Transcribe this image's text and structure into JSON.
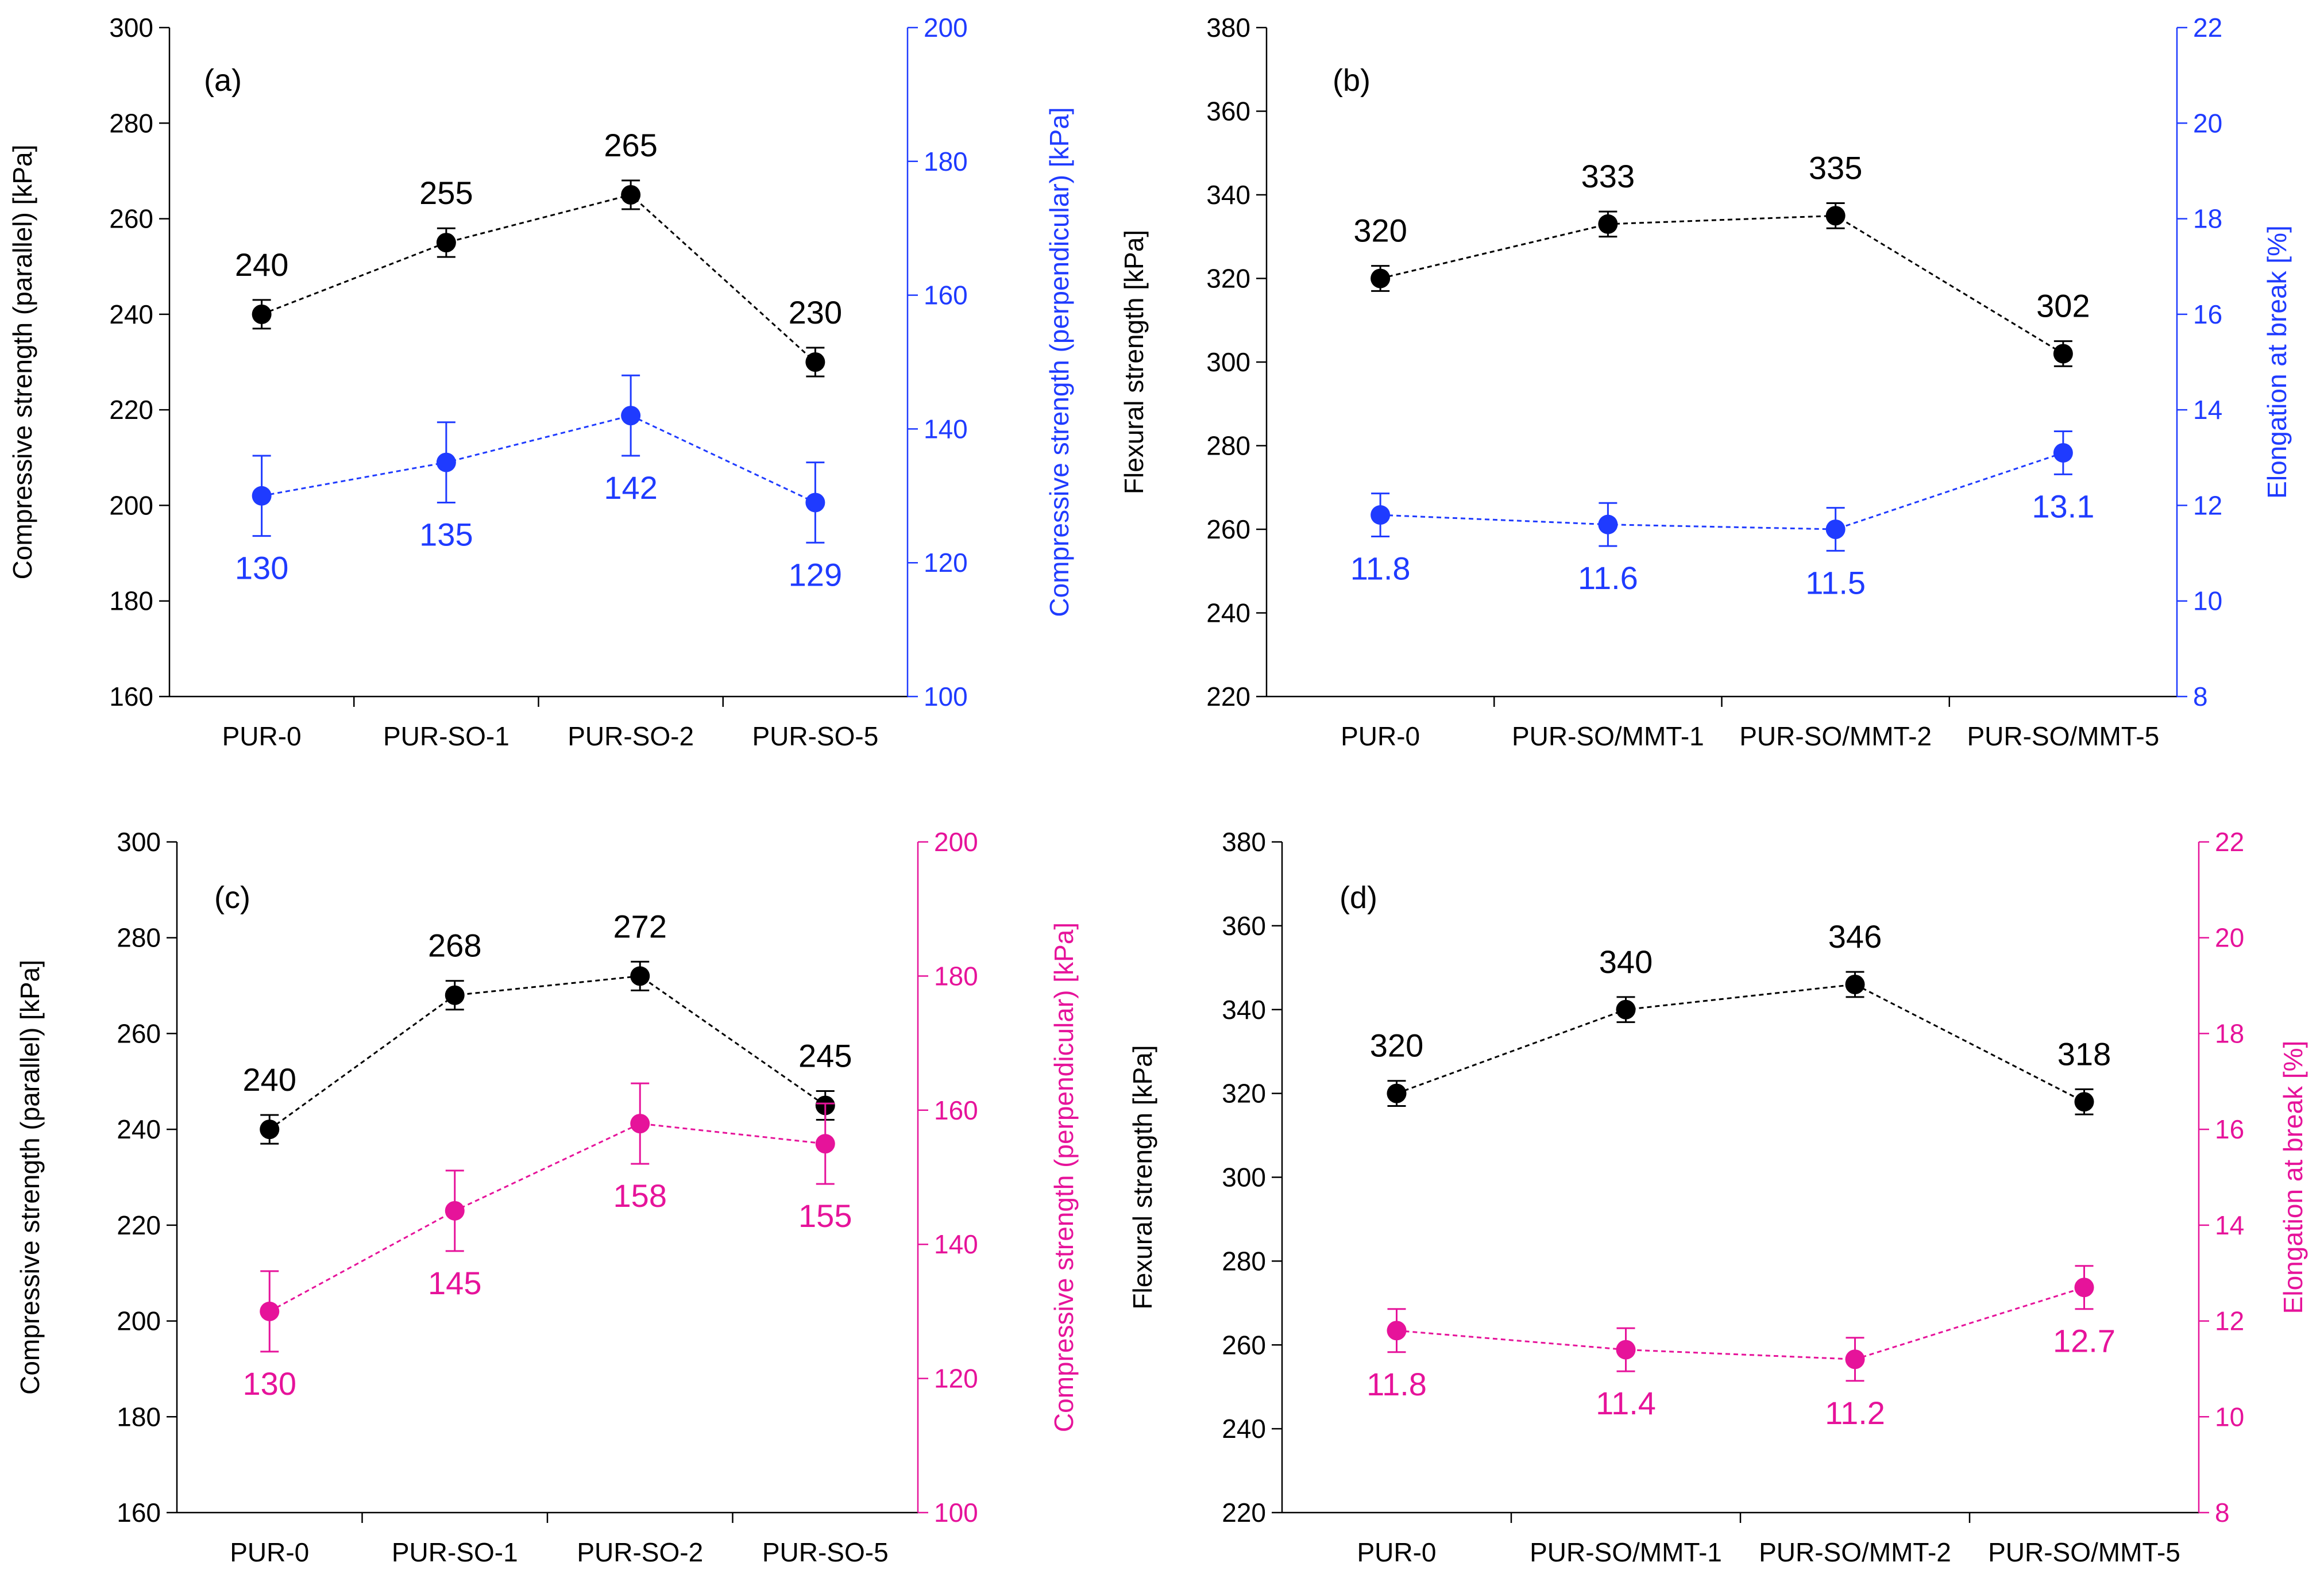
{
  "colors": {
    "black": "#000000",
    "blue": "#1f3bff",
    "magenta": "#e6139a"
  },
  "chart_data": [
    {
      "type": "line",
      "panel": "(a)",
      "categories": [
        "PUR-0",
        "PUR-SO-1",
        "PUR-SO-2",
        "PUR-SO-5"
      ],
      "y_left": {
        "label": "Compressive strength (parallel) [kPa]",
        "lim": [
          160,
          300
        ],
        "ticks": [
          160,
          180,
          200,
          220,
          240,
          260,
          280,
          300
        ]
      },
      "y_right": {
        "label": "Compressive strength (perpendicular) [kPa]",
        "lim": [
          100,
          200
        ],
        "ticks": [
          100,
          120,
          140,
          160,
          180,
          200
        ]
      },
      "right_color": "blue",
      "series": [
        {
          "name": "parallel",
          "axis": "left",
          "color": "black",
          "values": [
            240,
            255,
            265,
            230
          ],
          "labels": [
            "240",
            "255",
            "265",
            "230"
          ],
          "err": [
            3,
            3,
            3,
            3
          ],
          "label_pos": "above"
        },
        {
          "name": "perpendicular",
          "axis": "right",
          "color": "blue",
          "values": [
            130,
            135,
            142,
            129
          ],
          "labels": [
            "130",
            "135",
            "142",
            "129"
          ],
          "err": [
            6,
            6,
            6,
            6
          ],
          "label_pos": "below"
        }
      ]
    },
    {
      "type": "line",
      "panel": "(b)",
      "categories": [
        "PUR-0",
        "PUR-SO/MMT-1",
        "PUR-SO/MMT-2",
        "PUR-SO/MMT-5"
      ],
      "y_left": {
        "label": "Flexural strength [kPa]",
        "lim": [
          220,
          380
        ],
        "ticks": [
          220,
          240,
          260,
          280,
          300,
          320,
          340,
          360,
          380
        ]
      },
      "y_right": {
        "label": "Elongation at break [%]",
        "lim": [
          8,
          22
        ],
        "ticks": [
          8,
          10,
          12,
          14,
          16,
          18,
          20,
          22
        ]
      },
      "right_color": "blue",
      "series": [
        {
          "name": "flexural",
          "axis": "left",
          "color": "black",
          "values": [
            320,
            333,
            335,
            302
          ],
          "labels": [
            "320",
            "333",
            "335",
            "302"
          ],
          "err": [
            3,
            3,
            3,
            3
          ],
          "label_pos": "above"
        },
        {
          "name": "elongation",
          "axis": "right",
          "color": "blue",
          "values": [
            11.8,
            11.6,
            11.5,
            13.1
          ],
          "labels": [
            "11.8",
            "11.6",
            "11.5",
            "13.1"
          ],
          "err": [
            0.45,
            0.45,
            0.45,
            0.45
          ],
          "label_pos": "below"
        }
      ]
    },
    {
      "type": "line",
      "panel": "(c)",
      "categories": [
        "PUR-0",
        "PUR-SO-1",
        "PUR-SO-2",
        "PUR-SO-5"
      ],
      "y_left": {
        "label": "Compressive strength (parallel) [kPa]",
        "lim": [
          160,
          300
        ],
        "ticks": [
          160,
          180,
          200,
          220,
          240,
          260,
          280,
          300
        ]
      },
      "y_right": {
        "label": "Compressive strength (perpendicular) [kPa]",
        "lim": [
          100,
          200
        ],
        "ticks": [
          100,
          120,
          140,
          160,
          180,
          200
        ]
      },
      "right_color": "magenta",
      "series": [
        {
          "name": "parallel",
          "axis": "left",
          "color": "black",
          "values": [
            240,
            268,
            272,
            245
          ],
          "labels": [
            "240",
            "268",
            "272",
            "245"
          ],
          "err": [
            3,
            3,
            3,
            3
          ],
          "label_pos": "above"
        },
        {
          "name": "perpendicular",
          "axis": "right",
          "color": "magenta",
          "values": [
            130,
            145,
            158,
            155
          ],
          "labels": [
            "130",
            "145",
            "158",
            "155"
          ],
          "err": [
            6,
            6,
            6,
            6
          ],
          "label_pos": "below"
        }
      ]
    },
    {
      "type": "line",
      "panel": "(d)",
      "categories": [
        "PUR-0",
        "PUR-SO/MMT-1",
        "PUR-SO/MMT-2",
        "PUR-SO/MMT-5"
      ],
      "y_left": {
        "label": "Flexural strength [kPa]",
        "lim": [
          220,
          380
        ],
        "ticks": [
          220,
          240,
          260,
          280,
          300,
          320,
          340,
          360,
          380
        ]
      },
      "y_right": {
        "label": "Elongation at break [%]",
        "lim": [
          8,
          22
        ],
        "ticks": [
          8,
          10,
          12,
          14,
          16,
          18,
          20,
          22
        ]
      },
      "right_color": "magenta",
      "series": [
        {
          "name": "flexural",
          "axis": "left",
          "color": "black",
          "values": [
            320,
            340,
            346,
            318
          ],
          "labels": [
            "320",
            "340",
            "346",
            "318"
          ],
          "err": [
            3,
            3,
            3,
            3
          ],
          "label_pos": "above"
        },
        {
          "name": "elongation",
          "axis": "right",
          "color": "magenta",
          "values": [
            11.8,
            11.4,
            11.2,
            12.7
          ],
          "labels": [
            "11.8",
            "11.4",
            "11.2",
            "12.7"
          ],
          "err": [
            0.45,
            0.45,
            0.45,
            0.45
          ],
          "label_pos": "below"
        }
      ]
    }
  ]
}
